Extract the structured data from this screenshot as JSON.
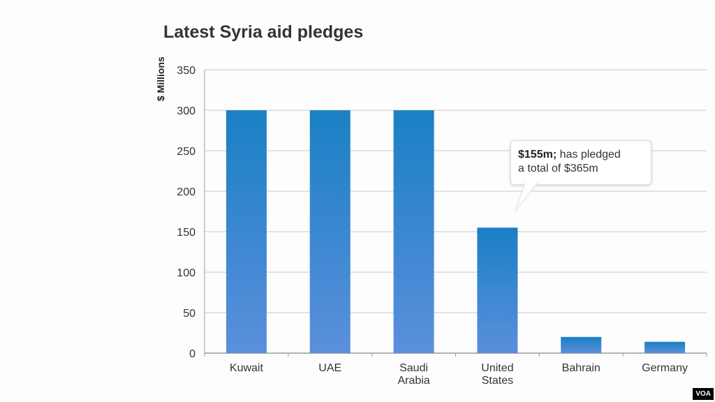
{
  "chart_data": {
    "type": "bar",
    "title": "Latest Syria aid pledges",
    "ylabel": "$ Millions",
    "xlabel": "",
    "categories": [
      "Kuwait",
      "UAE",
      "Saudi Arabia",
      "United States",
      "Bahrain",
      "Germany"
    ],
    "category_lines": [
      [
        "Kuwait"
      ],
      [
        "UAE"
      ],
      [
        "Saudi",
        "Arabia"
      ],
      [
        "United",
        "States"
      ],
      [
        "Bahrain"
      ],
      [
        "Germany"
      ]
    ],
    "values": [
      300,
      300,
      300,
      155,
      20,
      14
    ],
    "ylim": [
      0,
      350
    ],
    "yticks": [
      0,
      50,
      100,
      150,
      200,
      250,
      300,
      350
    ],
    "grid": true,
    "bar_color_top": "#1a80c4",
    "bar_color_bottom": "#5b8fdc",
    "annotation": {
      "bold": "$155m;",
      "text": " has pledged",
      "line2": "a total of $365m",
      "category": "United States"
    }
  },
  "watermark": "VOA"
}
